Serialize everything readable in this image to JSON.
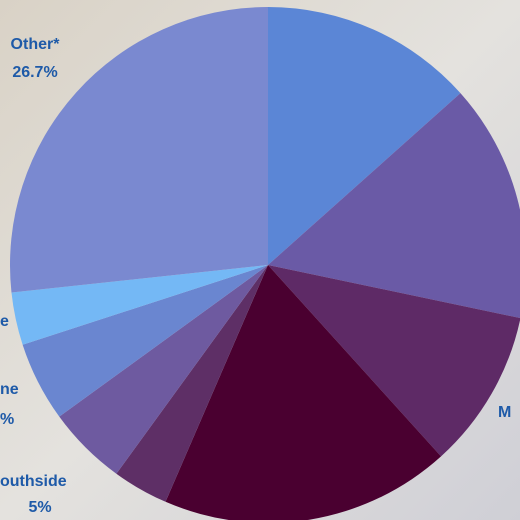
{
  "chart_data": {
    "type": "pie",
    "categories": [
      null,
      null,
      "M",
      null,
      null,
      "outhside",
      "ne",
      "e",
      "Other*"
    ],
    "values": [
      13.4,
      14.9,
      10,
      18.2,
      3.5,
      5,
      5,
      3.3,
      26.7
    ],
    "value_labels": [
      null,
      null,
      null,
      null,
      null,
      "5%",
      "%",
      null,
      "26.7%"
    ],
    "colors": [
      "#5b86d6",
      "#6a5aa6",
      "#5e2a66",
      "#4a0030",
      "#5e2f66",
      "#6e5aa0",
      "#6a86d0",
      "#74b8f5",
      "#7a89d0"
    ]
  }
}
